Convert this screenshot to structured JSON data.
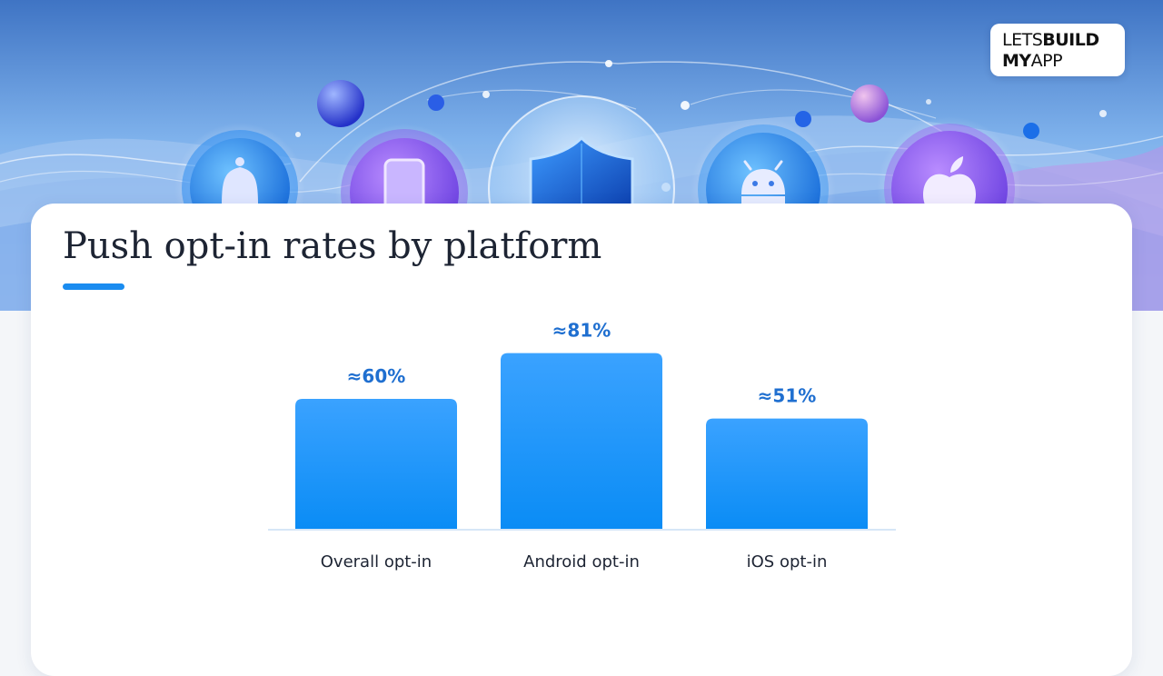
{
  "brand": {
    "logo_line1_a": "LETS",
    "logo_line1_b": "BUILD",
    "logo_line2_a": "MY",
    "logo_line2_b": "APP"
  },
  "hero_icons": [
    "bell-icon",
    "phone-icon",
    "shield-icon",
    "android-icon",
    "apple-icon"
  ],
  "colors": {
    "accent": "#1a8cf0",
    "bar_top": "#3aa2ff",
    "bar_bottom": "#0a8cf5",
    "value_label": "#1f6fd0",
    "title": "#1d2433"
  },
  "chart_data": {
    "type": "bar",
    "title": "Push opt-in rates by platform",
    "categories": [
      "Overall opt-in",
      "Android opt-in",
      "iOS opt-in"
    ],
    "values": [
      60,
      81,
      51
    ],
    "value_labels": [
      "≈60%",
      "≈81%",
      "≈51%"
    ],
    "xlabel": "",
    "ylabel": "",
    "ylim": [
      0,
      100
    ],
    "grid": false,
    "legend": "none"
  }
}
